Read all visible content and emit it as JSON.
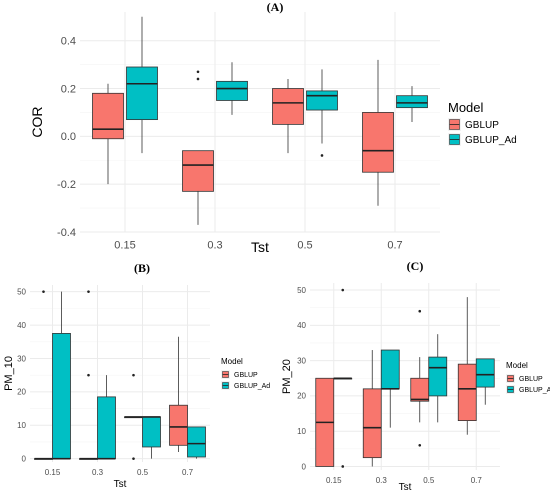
{
  "colors": {
    "gblup": "#F8766D",
    "gblup_ad": "#00BFC4",
    "grid": "#EBEBEB",
    "whisker": "#333333"
  },
  "chart_data": [
    {
      "panel": "(A)",
      "type": "box",
      "categories": [
        "0.15",
        "0.3",
        "0.5",
        "0.7"
      ],
      "xlabel": "Tst",
      "ylabel": "COR",
      "ylim": [
        -0.4,
        0.52
      ],
      "yticks": [
        "-0.4",
        "-0.2",
        "0.0",
        "0.2",
        "0.4"
      ],
      "legend": {
        "title": "Model",
        "position": "right",
        "items": [
          "GBLUP",
          "GBLUP_Ad"
        ]
      },
      "series": [
        {
          "name": "GBLUP",
          "boxes": [
            {
              "min": -0.2,
              "q1": -0.01,
              "median": 0.03,
              "q3": 0.18,
              "max": 0.22,
              "outliers": []
            },
            {
              "min": -0.37,
              "q1": -0.23,
              "median": -0.12,
              "q3": -0.06,
              "max": -0.06,
              "outliers": [
                0.27,
                0.24
              ]
            },
            {
              "min": -0.07,
              "q1": 0.05,
              "median": 0.14,
              "q3": 0.2,
              "max": 0.24,
              "outliers": []
            },
            {
              "min": -0.29,
              "q1": -0.15,
              "median": -0.06,
              "q3": 0.1,
              "max": 0.32,
              "outliers": []
            }
          ]
        },
        {
          "name": "GBLUP_Ad",
          "boxes": [
            {
              "min": -0.07,
              "q1": 0.07,
              "median": 0.22,
              "q3": 0.29,
              "max": 0.5,
              "outliers": []
            },
            {
              "min": 0.09,
              "q1": 0.15,
              "median": 0.2,
              "q3": 0.23,
              "max": 0.31,
              "outliers": []
            },
            {
              "min": -0.03,
              "q1": 0.11,
              "median": 0.17,
              "q3": 0.19,
              "max": 0.28,
              "outliers": [
                -0.08
              ]
            },
            {
              "min": 0.06,
              "q1": 0.12,
              "median": 0.14,
              "q3": 0.17,
              "max": 0.21,
              "outliers": []
            }
          ]
        }
      ]
    },
    {
      "panel": "(B)",
      "type": "box",
      "categories": [
        "0.15",
        "0.3",
        "0.5",
        "0.7"
      ],
      "xlabel": "Tst",
      "ylabel": "PM_10",
      "ylim": [
        -1,
        52
      ],
      "yticks": [
        "0",
        "10",
        "20",
        "30",
        "40",
        "50"
      ],
      "legend": {
        "title": "Model",
        "position": "right",
        "items": [
          "GBLUP",
          "GBLUP_Ad"
        ]
      },
      "series": [
        {
          "name": "GBLUP",
          "boxes": [
            {
              "min": 0,
              "q1": 0,
              "median": 0,
              "q3": 0,
              "max": 0,
              "outliers": [
                50
              ]
            },
            {
              "min": 0,
              "q1": 0,
              "median": 0,
              "q3": 0,
              "max": 0,
              "outliers": [
                50,
                25
              ]
            },
            {
              "min": 12.5,
              "q1": 12.5,
              "median": 12.5,
              "q3": 12.5,
              "max": 12.5,
              "outliers": [
                25,
                0
              ]
            },
            {
              "min": 2,
              "q1": 4,
              "median": 9.5,
              "q3": 16,
              "max": 36.5,
              "outliers": []
            }
          ]
        },
        {
          "name": "GBLUP_Ad",
          "boxes": [
            {
              "min": 0,
              "q1": 0,
              "median": 0,
              "q3": 37.5,
              "max": 50,
              "outliers": []
            },
            {
              "min": 0,
              "q1": 0,
              "median": 0,
              "q3": 18.5,
              "max": 25,
              "outliers": []
            },
            {
              "min": 0,
              "q1": 3.5,
              "median": 12.5,
              "q3": 12.5,
              "max": 12.5,
              "outliers": []
            },
            {
              "min": 0,
              "q1": 0.5,
              "median": 4.5,
              "q3": 9.5,
              "max": 9.5,
              "outliers": []
            }
          ]
        }
      ]
    },
    {
      "panel": "(C)",
      "type": "box",
      "categories": [
        "0.15",
        "0.3",
        "0.5",
        "0.7"
      ],
      "xlabel": "Tst",
      "ylabel": "PM_20",
      "ylim": [
        -1,
        52
      ],
      "yticks": [
        "0",
        "10",
        "20",
        "30",
        "40",
        "50"
      ],
      "legend": {
        "title": "Model",
        "position": "right",
        "items": [
          "GBLUP",
          "GBLUP_Ad"
        ]
      },
      "series": [
        {
          "name": "GBLUP",
          "boxes": [
            {
              "min": 0,
              "q1": 0,
              "median": 12.5,
              "q3": 25,
              "max": 25,
              "outliers": []
            },
            {
              "min": 0,
              "q1": 2.5,
              "median": 11,
              "q3": 22,
              "max": 33,
              "outliers": []
            },
            {
              "min": 12.5,
              "q1": 18.5,
              "median": 19,
              "q3": 25,
              "max": 31,
              "outliers": [
                44,
                6
              ]
            },
            {
              "min": 9,
              "q1": 13,
              "median": 22,
              "q3": 29,
              "max": 48,
              "outliers": []
            }
          ]
        },
        {
          "name": "GBLUP_Ad",
          "boxes": [
            {
              "min": 25,
              "q1": 25,
              "median": 25,
              "q3": 25,
              "max": 25,
              "outliers": [
                50,
                0
              ]
            },
            {
              "min": 11,
              "q1": 22,
              "median": 22,
              "q3": 33,
              "max": 33,
              "outliers": []
            },
            {
              "min": 12.5,
              "q1": 20,
              "median": 28,
              "q3": 31,
              "max": 37.5,
              "outliers": []
            },
            {
              "min": 17.5,
              "q1": 22.5,
              "median": 26,
              "q3": 30.5,
              "max": 30.5,
              "outliers": []
            }
          ]
        }
      ]
    }
  ]
}
